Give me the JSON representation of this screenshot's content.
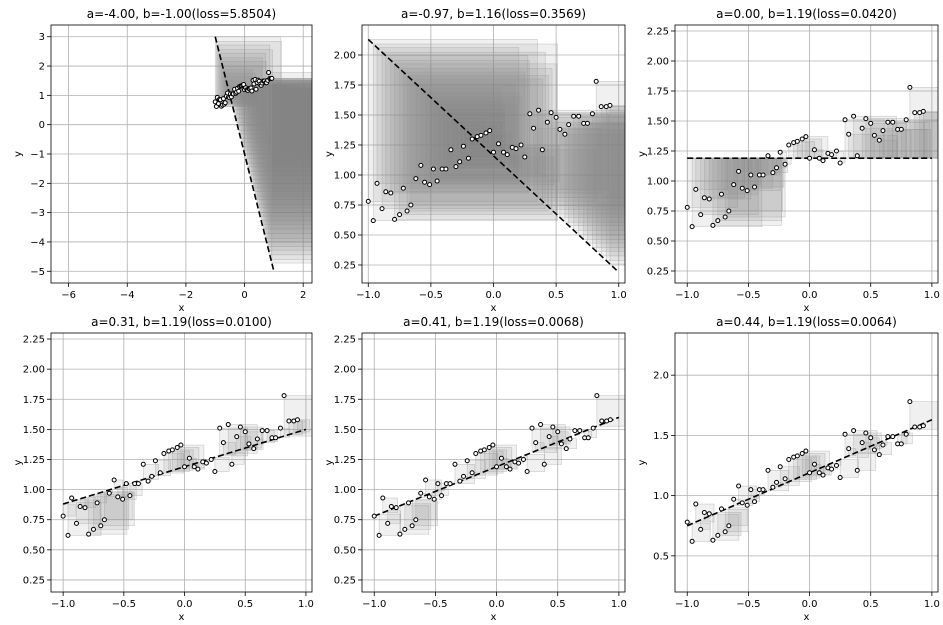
{
  "figure": {
    "rows": 2,
    "cols": 3,
    "background": "#ffffff"
  },
  "style": {
    "data_point_color": "#000000",
    "fit_line_color": "#000000",
    "square_fill": "#808080",
    "grid_color": "#b0b0b0"
  },
  "shared": {
    "points": [
      [
        -1.0,
        0.78
      ],
      [
        -0.96,
        0.62
      ],
      [
        -0.93,
        0.93
      ],
      [
        -0.89,
        0.72
      ],
      [
        -0.86,
        0.86
      ],
      [
        -0.82,
        0.85
      ],
      [
        -0.79,
        0.63
      ],
      [
        -0.75,
        0.67
      ],
      [
        -0.72,
        0.89
      ],
      [
        -0.69,
        0.7
      ],
      [
        -0.66,
        0.75
      ],
      [
        -0.62,
        0.97
      ],
      [
        -0.58,
        1.08
      ],
      [
        -0.55,
        0.94
      ],
      [
        -0.51,
        0.92
      ],
      [
        -0.48,
        1.05
      ],
      [
        -0.45,
        0.95
      ],
      [
        -0.41,
        1.05
      ],
      [
        -0.38,
        1.05
      ],
      [
        -0.34,
        1.21
      ],
      [
        -0.3,
        1.07
      ],
      [
        -0.27,
        1.11
      ],
      [
        -0.24,
        1.24
      ],
      [
        -0.2,
        1.14
      ],
      [
        -0.17,
        1.3
      ],
      [
        -0.13,
        1.32
      ],
      [
        -0.1,
        1.33
      ],
      [
        -0.06,
        1.35
      ],
      [
        -0.03,
        1.37
      ],
      [
        0.0,
        1.19
      ],
      [
        0.04,
        1.26
      ],
      [
        0.08,
        1.19
      ],
      [
        0.11,
        1.17
      ],
      [
        0.15,
        1.23
      ],
      [
        0.18,
        1.22
      ],
      [
        0.22,
        1.25
      ],
      [
        0.25,
        1.15
      ],
      [
        0.29,
        1.51
      ],
      [
        0.32,
        1.39
      ],
      [
        0.36,
        1.54
      ],
      [
        0.39,
        1.21
      ],
      [
        0.43,
        1.44
      ],
      [
        0.46,
        1.52
      ],
      [
        0.5,
        1.48
      ],
      [
        0.53,
        1.38
      ],
      [
        0.57,
        1.34
      ],
      [
        0.6,
        1.42
      ],
      [
        0.64,
        1.49
      ],
      [
        0.68,
        1.49
      ],
      [
        0.72,
        1.43
      ],
      [
        0.75,
        1.43
      ],
      [
        0.79,
        1.51
      ],
      [
        0.82,
        1.78
      ],
      [
        0.86,
        1.57
      ],
      [
        0.9,
        1.57
      ],
      [
        0.93,
        1.58
      ]
    ]
  },
  "chart_data": [
    {
      "type": "scatter",
      "title": "a=-4.00, b=-1.00(loss=5.8504)",
      "xlabel": "x",
      "ylabel": "y",
      "xlim": [
        -6.6,
        2.3
      ],
      "ylim": [
        -5.4,
        3.4
      ],
      "xticks": [
        -6,
        -4,
        -2,
        0,
        2
      ],
      "yticks": [
        -5,
        -4,
        -3,
        -2,
        -1,
        0,
        1,
        2,
        3
      ],
      "xtick_labels": [
        "−6",
        "−4",
        "−2",
        "0",
        "2"
      ],
      "ytick_labels": [
        "−5",
        "−4",
        "−3",
        "−2",
        "−1",
        "0",
        "1",
        "2",
        "3"
      ],
      "a": -4.0,
      "b": -1.0,
      "grid": true
    },
    {
      "type": "scatter",
      "title": "a=-0.97, b=1.16(loss=0.3569)",
      "xlabel": "x",
      "ylabel": "y",
      "xlim": [
        -1.05,
        1.05
      ],
      "ylim": [
        0.1,
        2.25
      ],
      "xticks": [
        -1.0,
        -0.5,
        0.0,
        0.5,
        1.0
      ],
      "yticks": [
        0.25,
        0.5,
        0.75,
        1.0,
        1.25,
        1.5,
        1.75,
        2.0
      ],
      "xtick_labels": [
        "−1.0",
        "−0.5",
        "0.0",
        "0.5",
        "1.0"
      ],
      "ytick_labels": [
        "0.25",
        "0.50",
        "0.75",
        "1.00",
        "1.25",
        "1.50",
        "1.75",
        "2.00"
      ],
      "a": -0.97,
      "b": 1.16,
      "grid": true
    },
    {
      "type": "scatter",
      "title": "a=0.00, b=1.19(loss=0.0420)",
      "xlabel": "x",
      "ylabel": "y",
      "xlim": [
        -1.1,
        1.05
      ],
      "ylim": [
        0.15,
        2.3
      ],
      "xticks": [
        -1.0,
        -0.5,
        0.0,
        0.5,
        1.0
      ],
      "yticks": [
        0.25,
        0.5,
        0.75,
        1.0,
        1.25,
        1.5,
        1.75,
        2.0,
        2.25
      ],
      "xtick_labels": [
        "−1.0",
        "−0.5",
        "0.0",
        "0.5",
        "1.0"
      ],
      "ytick_labels": [
        "0.25",
        "0.50",
        "0.75",
        "1.00",
        "1.25",
        "1.50",
        "1.75",
        "2.00",
        "2.25"
      ],
      "a": 0.0,
      "b": 1.19,
      "grid": true
    },
    {
      "type": "scatter",
      "title": "a=0.31, b=1.19(loss=0.0100)",
      "xlabel": "x",
      "ylabel": "y",
      "xlim": [
        -1.1,
        1.05
      ],
      "ylim": [
        0.15,
        2.3
      ],
      "xticks": [
        -1.0,
        -0.5,
        0.0,
        0.5,
        1.0
      ],
      "yticks": [
        0.25,
        0.5,
        0.75,
        1.0,
        1.25,
        1.5,
        1.75,
        2.0,
        2.25
      ],
      "xtick_labels": [
        "−1.0",
        "−0.5",
        "0.0",
        "0.5",
        "1.0"
      ],
      "ytick_labels": [
        "0.25",
        "0.50",
        "0.75",
        "1.00",
        "1.25",
        "1.50",
        "1.75",
        "2.00",
        "2.25"
      ],
      "a": 0.31,
      "b": 1.19,
      "grid": true
    },
    {
      "type": "scatter",
      "title": "a=0.41, b=1.19(loss=0.0068)",
      "xlabel": "x",
      "ylabel": "y",
      "xlim": [
        -1.1,
        1.05
      ],
      "ylim": [
        0.15,
        2.3
      ],
      "xticks": [
        -1.0,
        -0.5,
        0.0,
        0.5,
        1.0
      ],
      "yticks": [
        0.25,
        0.5,
        0.75,
        1.0,
        1.25,
        1.5,
        1.75,
        2.0,
        2.25
      ],
      "xtick_labels": [
        "−1.0",
        "−0.5",
        "0.0",
        "0.5",
        "1.0"
      ],
      "ytick_labels": [
        "0.25",
        "0.50",
        "0.75",
        "1.00",
        "1.25",
        "1.50",
        "1.75",
        "2.00",
        "2.25"
      ],
      "a": 0.41,
      "b": 1.19,
      "grid": true
    },
    {
      "type": "scatter",
      "title": "a=0.44, b=1.19(loss=0.0064)",
      "xlabel": "x",
      "ylabel": "y",
      "xlim": [
        -1.1,
        1.05
      ],
      "ylim": [
        0.2,
        2.35
      ],
      "xticks": [
        -1.0,
        -0.5,
        0.0,
        0.5,
        1.0
      ],
      "yticks": [
        0.5,
        1.0,
        1.5,
        2.0
      ],
      "xtick_labels": [
        "−1.0",
        "−0.5",
        "0.0",
        "0.5",
        "1.0"
      ],
      "ytick_labels": [
        "0.5",
        "1.0",
        "1.5",
        "2.0"
      ],
      "a": 0.44,
      "b": 1.19,
      "grid": true
    }
  ]
}
